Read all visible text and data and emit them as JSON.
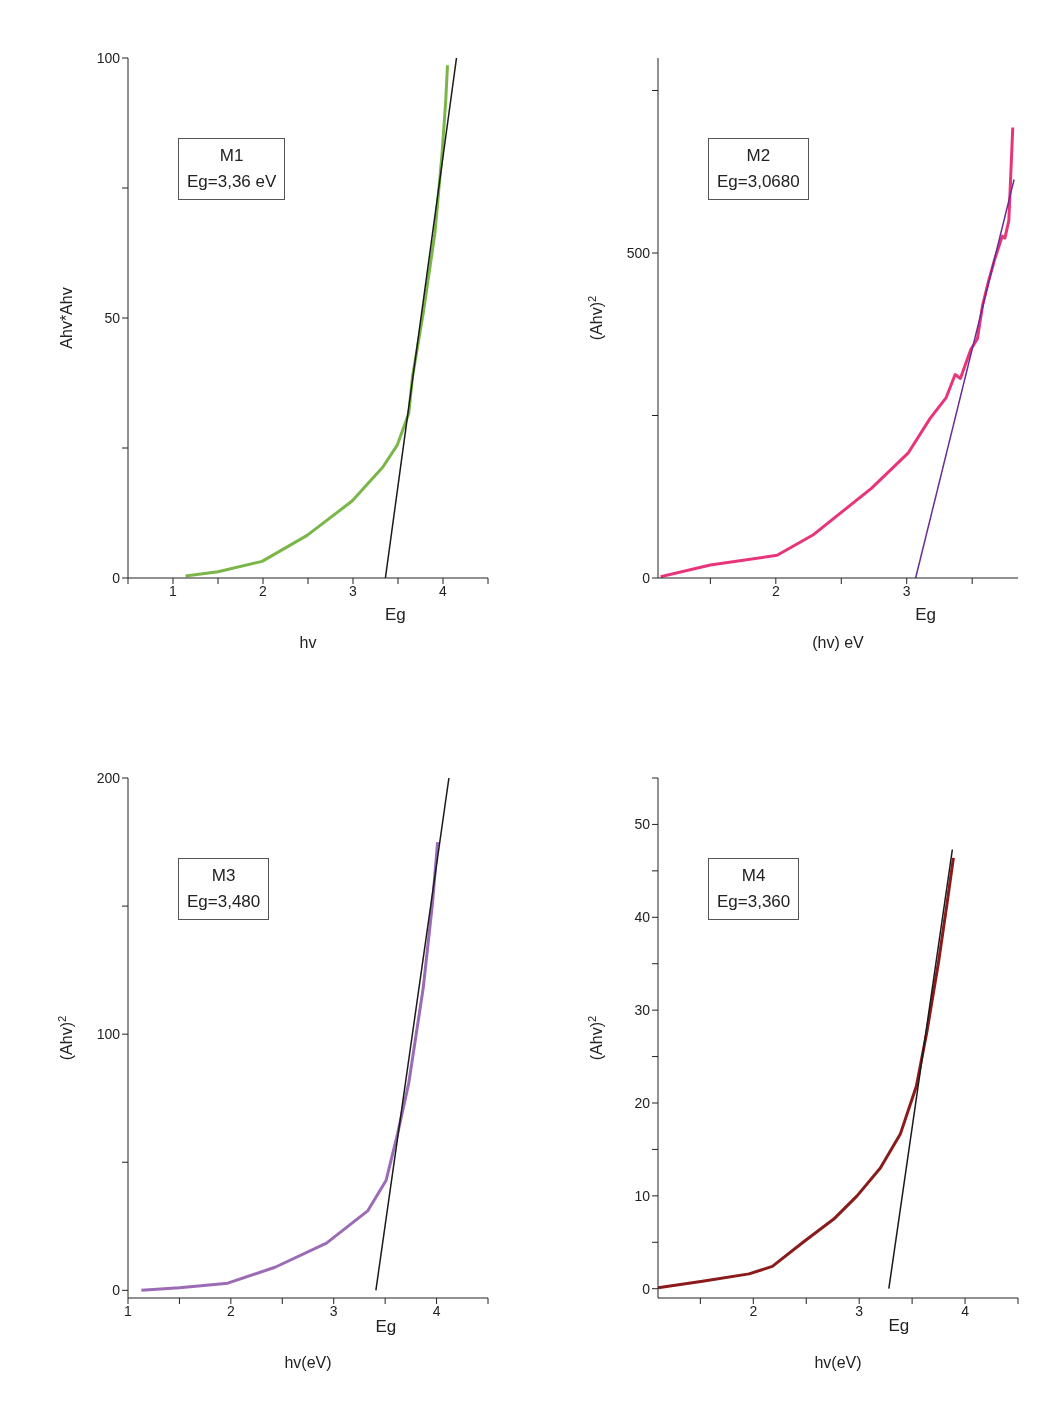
{
  "chart_data": [
    {
      "type": "line",
      "xlabel": "hv",
      "ylabel": "Ahv*Ahv",
      "annotations": [
        "M1",
        "Eg=3,36 eV",
        {
          "text": "Eg",
          "x": 3.36,
          "y": 0
        }
      ],
      "xlim": [
        0.5,
        4.5
      ],
      "ylim": [
        0,
        100
      ],
      "xticks": [
        {
          "value": 0.5,
          "label": null
        },
        1,
        {
          "value": 1.5,
          "label": null
        },
        2,
        {
          "value": 2.5,
          "label": null
        },
        3,
        {
          "value": 3.5,
          "label": null
        },
        4,
        {
          "value": 4.5,
          "label": null
        }
      ],
      "yticks": [
        0,
        {
          "value": 25,
          "label": null
        },
        50,
        {
          "value": 75,
          "label": null
        },
        100
      ],
      "series": [
        {
          "color": "#7ab648",
          "x": [
            1.14,
            1.5,
            1.99,
            2.49,
            2.99,
            3.33,
            3.49,
            3.62,
            3.66,
            3.78,
            3.91,
            3.99,
            4.03,
            4.05
          ],
          "values": [
            0.4,
            1.2,
            3.2,
            8.2,
            14.8,
            21.3,
            25.5,
            31.7,
            38.6,
            50.9,
            66.3,
            81.7,
            91.7,
            98.6
          ]
        },
        {
          "color": "#1a1a1a",
          "x": [
            3.36,
            4.15
          ],
          "values": [
            0,
            100
          ]
        }
      ]
    },
    {
      "type": "line",
      "xlabel": "(hv) eV",
      "ylabel": "(Ahv)$^{2}$",
      "annotations": [
        "M2",
        "Eg=3,0680",
        {
          "text": "Eg",
          "x": 3.068,
          "y": 0
        }
      ],
      "xlim": [
        1.1,
        3.85
      ],
      "ylim": [
        0,
        800
      ],
      "xticks": [
        {
          "value": 1.5,
          "label": null
        },
        2,
        {
          "value": 2.5,
          "label": null
        },
        3,
        {
          "value": 3.5,
          "label": null
        }
      ],
      "yticks": [
        0,
        {
          "value": 250,
          "label": null
        },
        500,
        {
          "value": 750,
          "label": null
        }
      ],
      "series": [
        {
          "color": "#e8357a",
          "x": [
            1.12,
            1.5,
            2.01,
            2.29,
            2.73,
            3.01,
            3.18,
            3.3,
            3.37,
            3.41,
            3.49,
            3.54,
            3.58,
            3.62,
            3.67,
            3.73,
            3.75,
            3.78,
            3.81
          ],
          "values": [
            2,
            20,
            35,
            67,
            138,
            192,
            246,
            277,
            313,
            307,
            352,
            368,
            420,
            453,
            489,
            526,
            523,
            550,
            693
          ]
        },
        {
          "color": "#6a2c91",
          "x": [
            3.068,
            3.82
          ],
          "values": [
            0,
            613
          ]
        }
      ]
    },
    {
      "type": "line",
      "xlabel": "hv(eV)",
      "ylabel": "(Ahv)$^{2}$",
      "annotations": [
        "M3",
        "Eg=3,480",
        {
          "text": "Eg",
          "x": 3.41,
          "y": 0
        }
      ],
      "xlim": [
        1,
        4.5
      ],
      "ylim": [
        -3,
        200
      ],
      "xticks": [
        1,
        {
          "value": 1.5,
          "label": null
        },
        2,
        {
          "value": 2.5,
          "label": null
        },
        3,
        {
          "value": 3.5,
          "label": null
        },
        4,
        {
          "value": 4.5,
          "label": null
        }
      ],
      "yticks": [
        0,
        {
          "value": 50,
          "label": null
        },
        100,
        {
          "value": 150,
          "label": null
        },
        200
      ],
      "series": [
        {
          "color": "#9b6bb5",
          "x": [
            1.13,
            1.5,
            1.97,
            2.43,
            2.93,
            3.33,
            3.51,
            3.62,
            3.73,
            3.87,
            3.96,
            4.01
          ],
          "values": [
            0,
            1,
            2.8,
            9,
            18.4,
            31,
            43,
            61,
            81,
            118,
            151,
            175
          ]
        },
        {
          "color": "#1a1a1a",
          "x": [
            3.41,
            4.12
          ],
          "values": [
            0,
            200
          ]
        }
      ]
    },
    {
      "type": "line",
      "xlabel": "hv(eV)",
      "ylabel": "(Ahv)$^{2}$",
      "annotations": [
        "M4",
        "Eg=3,360",
        {
          "text": "Eg",
          "x": 3.28,
          "y": 0
        }
      ],
      "xlim": [
        1.1,
        4.5
      ],
      "ylim": [
        -1,
        55
      ],
      "xticks": [
        {
          "value": 1.5,
          "label": null
        },
        2,
        {
          "value": 2.5,
          "label": null
        },
        3,
        {
          "value": 3.5,
          "label": null
        },
        4,
        {
          "value": 4.5,
          "label": null
        }
      ],
      "yticks": [
        0,
        {
          "value": 5,
          "label": null
        },
        10,
        {
          "value": 15,
          "label": null
        },
        20,
        {
          "value": 25,
          "label": null
        },
        30,
        {
          "value": 35,
          "label": null
        },
        40,
        {
          "value": 45,
          "label": null
        },
        50,
        {
          "value": 55,
          "label": null
        }
      ],
      "series": [
        {
          "color": "#8b1a1a",
          "x": [
            1.1,
            1.52,
            1.96,
            2.18,
            2.47,
            2.76,
            2.98,
            3.2,
            3.39,
            3.54,
            3.64,
            3.75,
            3.83,
            3.89
          ],
          "values": [
            0.1,
            0.8,
            1.6,
            2.4,
            5,
            7.5,
            10,
            13,
            16.7,
            21.8,
            27.7,
            35.2,
            41.5,
            46.4
          ]
        },
        {
          "color": "#1a1a1a",
          "x": [
            3.28,
            3.88
          ],
          "values": [
            0,
            47.3
          ]
        }
      ]
    }
  ]
}
